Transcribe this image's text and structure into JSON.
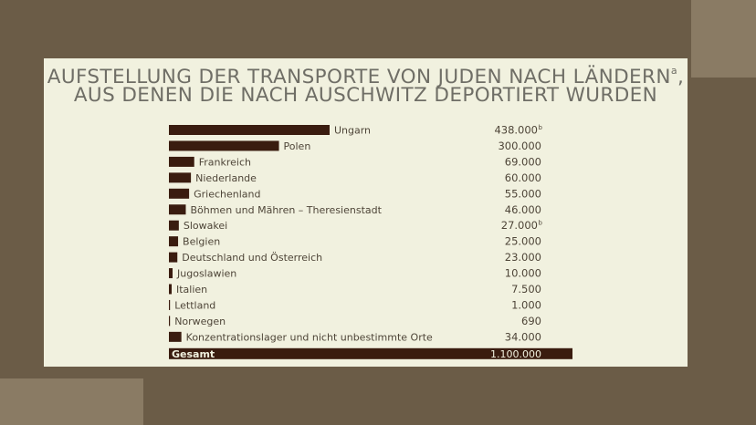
{
  "chart_data": {
    "type": "bar",
    "orientation": "horizontal",
    "title_line1": "AUFSTELLUNG DER TRANSPORTE VON JUDEN NACH LÄNDERN",
    "title_sup": "a",
    "title_line2": "AUS DENEN DIE NACH AUSCHWITZ DEPORTIERT WURDEN",
    "categories": [
      "Ungarn",
      "Polen",
      "Frankreich",
      "Niederlande",
      "Griechenland",
      "Böhmen und Mähren – Theresienstadt",
      "Slowakei",
      "Belgien",
      "Deutschland und Österreich",
      "Jugoslawien",
      "Italien",
      "Lettland",
      "Norwegen",
      "Konzentrationslager und nicht unbestimmte Orte"
    ],
    "values": [
      438000,
      300000,
      69000,
      60000,
      55000,
      46000,
      27000,
      25000,
      23000,
      10000,
      7500,
      1000,
      690,
      34000
    ],
    "value_labels": [
      "438.000",
      "300.000",
      "69.000",
      "60.000",
      "55.000",
      "46.000",
      "27.000",
      "25.000",
      "23.000",
      "10.000",
      "7.500",
      "1.000",
      "690",
      "34.000"
    ],
    "value_superscripts": [
      "b",
      "",
      "",
      "",
      "",
      "",
      "b",
      "",
      "",
      "",
      "",
      "",
      "",
      ""
    ],
    "total": {
      "label": "Gesamt",
      "value": 1100000,
      "value_label": "1.100.000"
    },
    "colors": {
      "bar": "#3a1c0f",
      "panel": "#f1f1df",
      "background": "#6b5c47"
    },
    "legend": "none",
    "grid": false
  }
}
